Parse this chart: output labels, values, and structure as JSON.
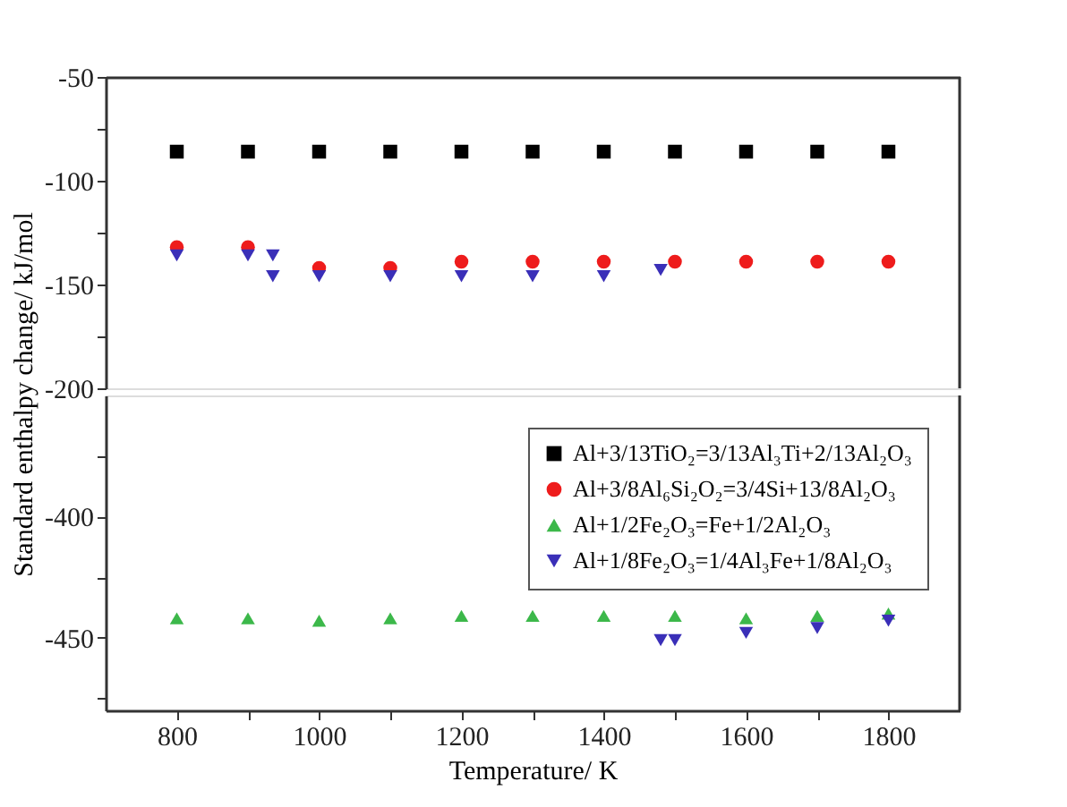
{
  "chart_data": [
    {
      "type": "scatter",
      "ylabel": "Standard enthalpy change/ kJ/mol",
      "xlim": [
        700,
        1900
      ],
      "ylim": [
        -200,
        -50
      ],
      "yticks": [
        -50,
        {
          "value": -75,
          "label": null
        },
        -100,
        {
          "value": -125,
          "label": null
        },
        -150,
        {
          "value": -175,
          "label": null
        },
        -200
      ],
      "tick_labels": "y",
      "grid": false,
      "legend": false,
      "series": [
        {
          "color": "#000000",
          "marker": "square",
          "x": [
            800,
            900,
            1000,
            1100,
            1200,
            1300,
            1400,
            1500,
            1600,
            1700,
            1800
          ],
          "values": [
            -86,
            -86,
            -86,
            -86,
            -86,
            -86,
            -86,
            -86,
            -86,
            -86,
            -86
          ]
        },
        {
          "color": "#ee1c1c",
          "marker": "circle",
          "x": [
            800,
            900,
            1000,
            1100,
            1200,
            1300,
            1400,
            1500,
            1600,
            1700,
            1800
          ],
          "values": [
            -132,
            -132,
            -142,
            -142,
            -139,
            -139,
            -139,
            -139,
            -139,
            -139,
            -139
          ]
        },
        {
          "color": "#3a2fb8",
          "marker": "triangle-down",
          "x": [
            800,
            900,
            935,
            935,
            1000,
            1100,
            1200,
            1300,
            1400,
            1480
          ],
          "values": [
            -136,
            -136,
            -136,
            -146,
            -146,
            -146,
            -146,
            -146,
            -146,
            -143
          ]
        }
      ]
    },
    {
      "type": "scatter",
      "xlabel": "Temperature/ K",
      "xlim": [
        700,
        1900
      ],
      "xticks": [
        800,
        {
          "value": 900,
          "label": null
        },
        1000,
        {
          "value": 1100,
          "label": null
        },
        1200,
        {
          "value": 1300,
          "label": null
        },
        1400,
        {
          "value": 1500,
          "label": null
        },
        1600,
        {
          "value": 1700,
          "label": null
        },
        1800
      ],
      "ylim": [
        -480,
        -350
      ],
      "yticks": [
        {
          "value": -375,
          "label": null
        },
        -400,
        {
          "value": -425,
          "label": null
        },
        -450,
        {
          "value": -475,
          "label": null
        }
      ],
      "grid": false,
      "legend": "top right",
      "series": [
        {
          "name": "Al+3/13TiO₂=3/13Al₃Ti+2/13Al₂O₃",
          "color": "#000000",
          "marker": "square"
        },
        {
          "name": "Al+3/8Al₆Si₂O₂=3/4Si+13/8Al₂O₃",
          "color": "#ee1c1c",
          "marker": "circle"
        },
        {
          "name": "Al+1/2Fe₂O₃=Fe+1/2Al₂O₃",
          "color": "#3cb84a",
          "marker": "triangle-up",
          "x": [
            800,
            900,
            1000,
            1100,
            1200,
            1300,
            1400,
            1500,
            1600,
            1700,
            1800
          ],
          "values": [
            -442,
            -442,
            -443,
            -442,
            -441,
            -441,
            -441,
            -441,
            -442,
            -441,
            -440
          ]
        },
        {
          "name": "Al+1/8Fe₂O₃=1/4Al₃Fe+1/8Al₂O₃",
          "color": "#3a2fb8",
          "marker": "triangle-down",
          "x": [
            1480,
            1500,
            1600,
            1700,
            1800
          ],
          "values": [
            -451,
            -451,
            -448,
            -446,
            -443
          ]
        }
      ]
    }
  ]
}
